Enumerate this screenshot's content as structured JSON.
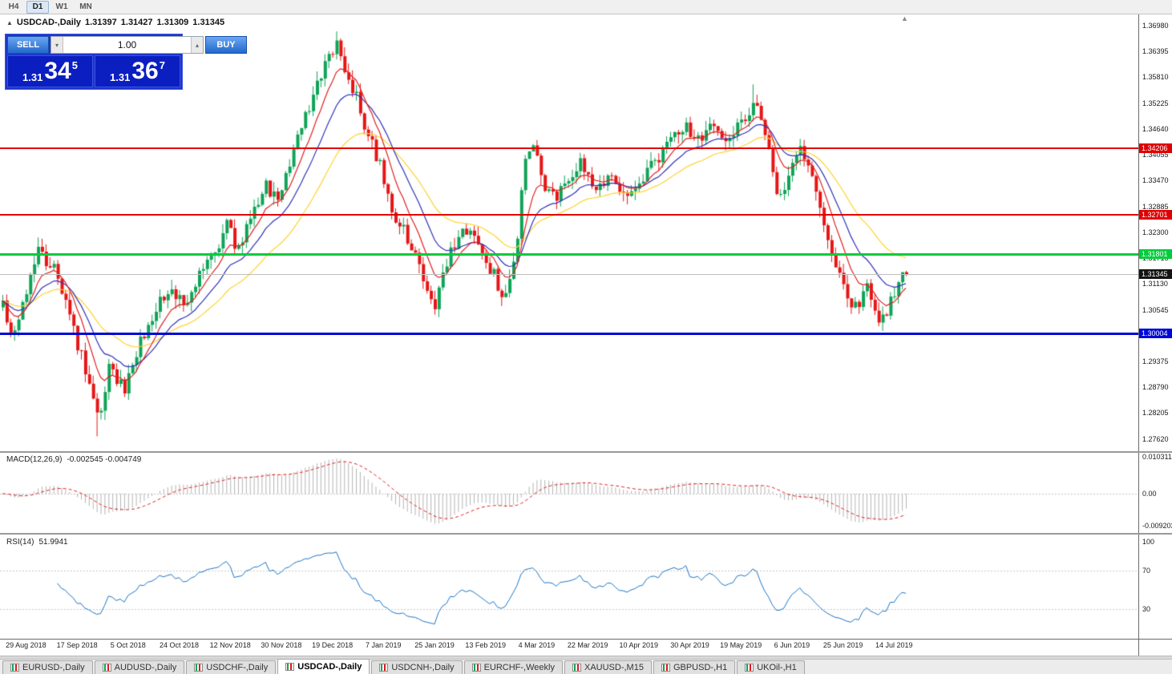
{
  "toolbar": {
    "timeframes": [
      {
        "label": "H4",
        "active": false
      },
      {
        "label": "D1",
        "active": true
      },
      {
        "label": "W1",
        "active": false
      },
      {
        "label": "MN",
        "active": false
      }
    ]
  },
  "chart_header": {
    "collapse_icon": "▲",
    "symbol_period": "USDCAD-,Daily",
    "open": "1.31397",
    "high": "1.31427",
    "low": "1.31309",
    "close": "1.31345"
  },
  "one_click": {
    "sell_label": "SELL",
    "buy_label": "BUY",
    "volume": "1.00",
    "volume_down_icon": "▾",
    "volume_up_icon": "▴",
    "sell_price": {
      "prefix": "1.31",
      "pips": "34",
      "point": "5"
    },
    "buy_price": {
      "prefix": "1.31",
      "pips": "36",
      "point": "7"
    }
  },
  "icons": {
    "shift_marker": "▲"
  },
  "price_axis": [
    "1.36980",
    "1.36395",
    "1.35810",
    "1.35225",
    "1.34640",
    "1.34055",
    "1.33470",
    "1.32885",
    "1.32300",
    "1.31715",
    "1.31130",
    "1.30545",
    "1.29960",
    "1.29375",
    "1.28790",
    "1.28205",
    "1.27620"
  ],
  "levels": [
    {
      "label": "1.34206",
      "price": 1.34206,
      "color": "#e00000",
      "thickness": 2
    },
    {
      "label": "1.32701",
      "price": 1.32701,
      "color": "#e00000",
      "thickness": 2
    },
    {
      "label": "1.31801",
      "price": 1.31801,
      "color": "#00cc3c",
      "thickness": 3
    },
    {
      "label": "1.31345",
      "price": 1.31345,
      "color": "#141414",
      "thickness": 1,
      "line_color": "#bdbdbd"
    },
    {
      "label": "1.30004",
      "price": 1.30004,
      "color": "#0008d8",
      "thickness": 3
    }
  ],
  "macd_panel": {
    "title": "MACD(12,26,9)",
    "values": "-0.002545 -0.004749",
    "axis_labels": [
      "0.010311",
      "0.00",
      "-0.009203"
    ]
  },
  "rsi_panel": {
    "title": "RSI(14)",
    "value": "51.9941",
    "axis_levels": [
      100,
      70,
      30
    ]
  },
  "time_axis": [
    "29 Aug 2018",
    "17 Sep 2018",
    "5 Oct 2018",
    "24 Oct 2018",
    "12 Nov 2018",
    "30 Nov 2018",
    "19 Dec 2018",
    "7 Jan 2019",
    "25 Jan 2019",
    "13 Feb 2019",
    "4 Mar 2019",
    "22 Mar 2019",
    "10 Apr 2019",
    "30 Apr 2019",
    "19 May 2019",
    "6 Jun 2019",
    "25 Jun 2019",
    "14 Jul 2019"
  ],
  "tabs": [
    {
      "label": "EURUSD-,Daily",
      "active": false
    },
    {
      "label": "AUDUSD-,Daily",
      "active": false
    },
    {
      "label": "USDCHF-,Daily",
      "active": false
    },
    {
      "label": "USDCAD-,Daily",
      "active": true
    },
    {
      "label": "USDCNH-,Daily",
      "active": false
    },
    {
      "label": "EURCHF-,Weekly",
      "active": false
    },
    {
      "label": "XAUUSD-,M15",
      "active": false
    },
    {
      "label": "GBPUSD-,H1",
      "active": false
    },
    {
      "label": "UKOil-,H1",
      "active": false
    }
  ],
  "chart_data": {
    "type": "candlestick",
    "symbol": "USDCAD-",
    "timeframe": "Daily",
    "ohlc_current": {
      "open": 1.31397,
      "high": 1.31427,
      "low": 1.31309,
      "close": 1.31345
    },
    "visible_price_range": [
      1.2734,
      1.3723
    ],
    "bar_count": 231,
    "wiggle": 0.0035,
    "wick": 0.0022,
    "price_anchors": [
      [
        0,
        1.306
      ],
      [
        2,
        1.2985
      ],
      [
        5,
        1.3075
      ],
      [
        9,
        1.3185
      ],
      [
        13,
        1.315
      ],
      [
        17,
        1.304
      ],
      [
        20,
        1.295
      ],
      [
        23,
        1.285
      ],
      [
        24,
        1.2805
      ],
      [
        27,
        1.2915
      ],
      [
        31,
        1.287
      ],
      [
        35,
        1.298
      ],
      [
        39,
        1.306
      ],
      [
        43,
        1.3105
      ],
      [
        46,
        1.306
      ],
      [
        50,
        1.313
      ],
      [
        54,
        1.3185
      ],
      [
        57,
        1.3245
      ],
      [
        60,
        1.319
      ],
      [
        63,
        1.327
      ],
      [
        67,
        1.334
      ],
      [
        70,
        1.33
      ],
      [
        74,
        1.342
      ],
      [
        78,
        1.352
      ],
      [
        82,
        1.362
      ],
      [
        85,
        1.365
      ],
      [
        87,
        1.36
      ],
      [
        90,
        1.354
      ],
      [
        93,
        1.345
      ],
      [
        96,
        1.338
      ],
      [
        99,
        1.327
      ],
      [
        102,
        1.323
      ],
      [
        106,
        1.315
      ],
      [
        110,
        1.307
      ],
      [
        113,
        1.316
      ],
      [
        116,
        1.323
      ],
      [
        119,
        1.324
      ],
      [
        122,
        1.318
      ],
      [
        125,
        1.313
      ],
      [
        128,
        1.3085
      ],
      [
        130,
        1.315
      ],
      [
        133,
        1.339
      ],
      [
        135,
        1.344
      ],
      [
        138,
        1.334
      ],
      [
        141,
        1.33
      ],
      [
        144,
        1.336
      ],
      [
        147,
        1.339
      ],
      [
        150,
        1.333
      ],
      [
        154,
        1.3355
      ],
      [
        158,
        1.332
      ],
      [
        162,
        1.333
      ],
      [
        166,
        1.339
      ],
      [
        170,
        1.344
      ],
      [
        174,
        1.347
      ],
      [
        177,
        1.344
      ],
      [
        180,
        1.3475
      ],
      [
        184,
        1.345
      ],
      [
        188,
        1.347
      ],
      [
        192,
        1.352
      ],
      [
        194,
        1.346
      ],
      [
        197,
        1.33
      ],
      [
        200,
        1.335
      ],
      [
        203,
        1.3415
      ],
      [
        206,
        1.334
      ],
      [
        209,
        1.324
      ],
      [
        212,
        1.315
      ],
      [
        215,
        1.3085
      ],
      [
        218,
        1.306
      ],
      [
        220,
        1.31
      ],
      [
        223,
        1.3035
      ],
      [
        226,
        1.307
      ],
      [
        228,
        1.31
      ],
      [
        230,
        1.31345
      ]
    ],
    "high_overrides": [
      [
        85,
        1.3685
      ],
      [
        191,
        1.3565
      ]
    ],
    "low_overrides": [
      [
        24,
        1.2768
      ]
    ],
    "last_bar": {
      "open": 1.31397,
      "high": 1.31427,
      "low": 1.31309,
      "close": 1.31345
    },
    "moving_averages": [
      {
        "name": "fast-ma",
        "type": "ema",
        "period": 8,
        "color": "#e02020"
      },
      {
        "name": "mid-ma",
        "type": "ema",
        "period": 16,
        "color": "#3030b8"
      },
      {
        "name": "slow-ma",
        "type": "ema",
        "period": 32,
        "color": "#ffd22e"
      }
    ],
    "macd": {
      "fast": 12,
      "slow": 26,
      "signal": 9,
      "histogram_color": "#b4b4b4",
      "signal_color": "#e02020"
    },
    "rsi": {
      "period": 14,
      "color": "#1b74c4",
      "levels": [
        70,
        30
      ]
    },
    "candle_up_color": "#0fa357",
    "candle_down_color": "#e51616"
  },
  "colors": {
    "panel_blue": "#1d35cc",
    "price_box_blue": "#0b1fc0",
    "button_blue": "#2268cc",
    "chart_bg": "#ffffff",
    "toolbar_bg": "#f0f0f0"
  }
}
